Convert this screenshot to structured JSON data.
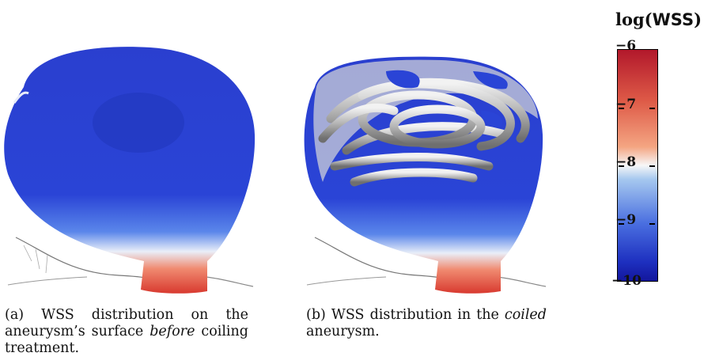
{
  "figure": {
    "panel_a_caption": {
      "label": "(a)",
      "text_before": " WSS distribution on the aneurysm’s surface ",
      "emph": "before",
      "text_after": " coiling treatment."
    },
    "panel_b_caption": {
      "label": "(b)",
      "text_before": " WSS distribution in the ",
      "emph": "coiled",
      "text_after": " aneurysm."
    }
  },
  "colorbar": {
    "title_prefix": "log(",
    "title_var": "WSS",
    "title_suffix": ")",
    "ticks": [
      "−6",
      "−7",
      "−8",
      "−9",
      "−10"
    ],
    "range": [
      -10,
      -6
    ],
    "colors": {
      "high": "#b2182b",
      "mid": "#f7f7f7",
      "low": "#13169c"
    }
  }
}
